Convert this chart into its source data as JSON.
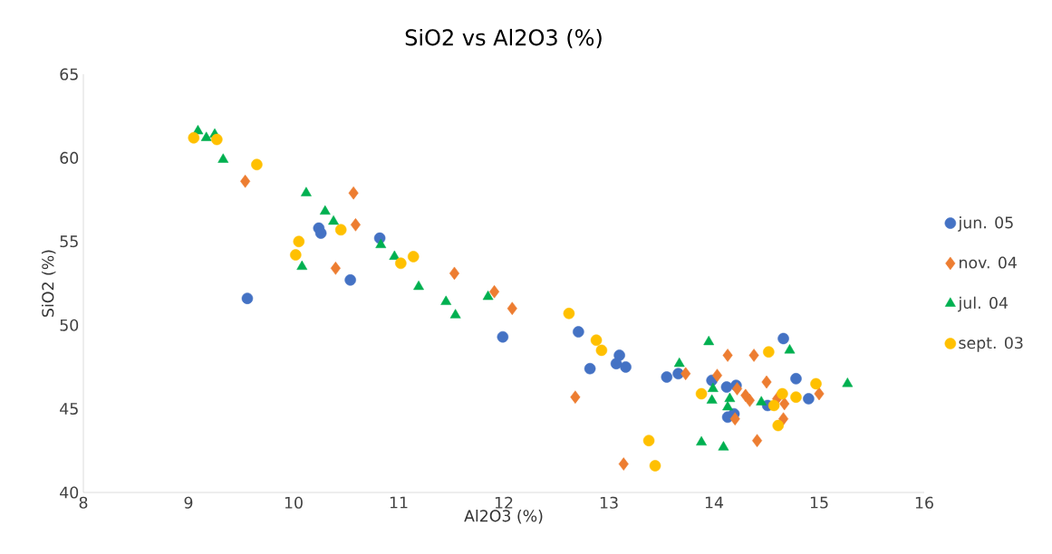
{
  "chart_data": {
    "type": "scatter",
    "title": "SiO2 vs Al2O3 (%)",
    "xlabel": "Al2O3 (%)",
    "ylabel": "SiO2 (%)",
    "xlim": [
      8,
      16
    ],
    "xticks": [
      8,
      9,
      10,
      11,
      12,
      13,
      14,
      15,
      16
    ],
    "ylim": [
      40,
      65
    ],
    "yticks": [
      40,
      45,
      50,
      55,
      60,
      65
    ],
    "grid": false,
    "legend": "right",
    "series": [
      {
        "name": "jun. 05",
        "color": "#4472c4",
        "marker": "circle",
        "x": [
          9.56,
          10.24,
          10.26,
          10.82,
          10.54,
          11.99,
          12.71,
          12.82,
          13.1,
          13.07,
          13.16,
          13.55,
          13.66,
          13.98,
          14.12,
          14.21,
          14.13,
          14.19,
          14.66,
          14.78,
          14.51,
          14.9
        ],
        "values": [
          51.6,
          55.8,
          55.5,
          55.2,
          52.7,
          49.3,
          49.6,
          47.4,
          48.2,
          47.7,
          47.5,
          46.9,
          47.1,
          46.7,
          46.3,
          46.4,
          44.5,
          44.7,
          49.2,
          46.8,
          45.2,
          45.6
        ]
      },
      {
        "name": "nov. 04",
        "color": "#ed7d31",
        "marker": "diamond",
        "x": [
          9.54,
          10.57,
          10.59,
          10.4,
          11.53,
          11.91,
          12.08,
          12.68,
          13.14,
          13.73,
          14.13,
          14.38,
          14.03,
          14.22,
          14.3,
          14.34,
          14.5,
          14.6,
          14.67,
          14.66,
          15.0,
          14.2,
          14.41
        ],
        "values": [
          58.6,
          57.9,
          56.0,
          53.4,
          53.1,
          52.0,
          51.0,
          45.7,
          41.7,
          47.1,
          48.2,
          48.2,
          47.0,
          46.2,
          45.8,
          45.5,
          46.6,
          45.6,
          45.3,
          44.4,
          45.9,
          44.4,
          43.1
        ]
      },
      {
        "name": "jul. 04",
        "color": "#00b050",
        "marker": "triangle",
        "x": [
          9.09,
          9.17,
          9.25,
          9.33,
          10.12,
          10.3,
          10.38,
          10.08,
          10.83,
          10.96,
          11.19,
          11.45,
          11.54,
          11.85,
          13.95,
          13.67,
          13.99,
          13.98,
          14.15,
          14.13,
          14.45,
          14.72,
          15.27,
          13.88,
          14.09
        ],
        "values": [
          61.6,
          61.2,
          61.4,
          59.9,
          57.9,
          56.8,
          56.2,
          53.5,
          54.8,
          54.1,
          52.3,
          51.4,
          50.6,
          51.7,
          49.0,
          47.7,
          46.2,
          45.5,
          45.6,
          45.1,
          45.4,
          48.5,
          46.5,
          43.0,
          42.7
        ]
      },
      {
        "name": "sept. 03",
        "color": "#ffc000",
        "marker": "circle",
        "x": [
          9.05,
          9.27,
          9.65,
          10.05,
          10.02,
          10.45,
          11.02,
          11.14,
          12.62,
          12.88,
          12.93,
          13.88,
          13.38,
          13.44,
          14.52,
          14.65,
          14.78,
          14.97,
          14.57,
          14.61
        ],
        "values": [
          61.2,
          61.1,
          59.6,
          55.0,
          54.2,
          55.7,
          53.7,
          54.1,
          50.7,
          49.1,
          48.5,
          45.9,
          43.1,
          41.6,
          48.4,
          45.9,
          45.7,
          46.5,
          45.2,
          44.0
        ]
      }
    ]
  }
}
